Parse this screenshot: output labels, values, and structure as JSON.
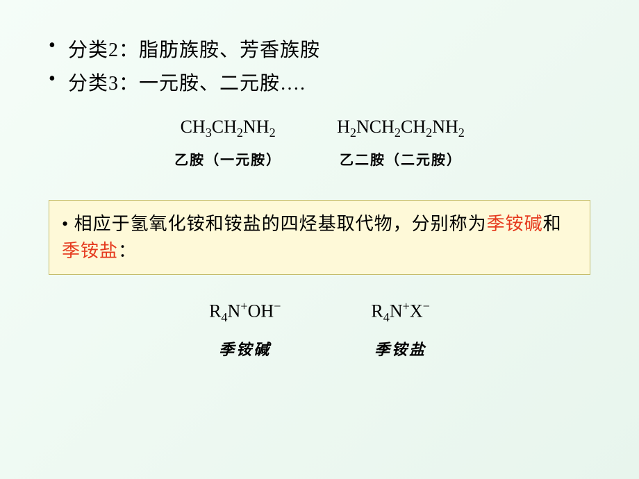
{
  "bullets": [
    {
      "prefix": "分类2：",
      "text": "脂肪族胺、芳香族胺"
    },
    {
      "prefix": "分类3：",
      "text": "一元胺、二元胺…."
    }
  ],
  "examples1": [
    {
      "formula_html": "CH<sub>3</sub>CH<sub>2</sub>NH<sub>2</sub>",
      "label": "乙胺（一元胺）"
    },
    {
      "formula_html": "H<sub>2</sub>NCH<sub>2</sub>CH<sub>2</sub>NH<sub>2</sub>",
      "label": "乙二胺（二元胺）"
    }
  ],
  "callout": {
    "bullet": "• ",
    "part1": "相应于氢氧化铵和铵盐的四烃基取代物，分别称为",
    "red1": "季铵碱",
    "mid": "和",
    "red2": "季铵盐",
    "end": "："
  },
  "examples2": [
    {
      "formula_html": "R<sub>4</sub>N<sup>+</sup>OH<sup>−</sup>",
      "label": "季铵碱"
    },
    {
      "formula_html": "R<sub>4</sub>N<sup>+</sup>X<sup>−</sup>",
      "label": "季铵盐"
    }
  ],
  "styles": {
    "background_gradient": [
      "#f5fdf8",
      "#eef9f2",
      "#e8f5ed"
    ],
    "text_color": "#000000",
    "callout_bg": "#fef9d8",
    "callout_border": "#c4bc6b",
    "red": "#e53a1e",
    "bullet_fontsize": 28,
    "formula_fontsize": 26,
    "label_fontsize": 20,
    "callout_fontsize": 26,
    "label2_fontsize": 22
  }
}
